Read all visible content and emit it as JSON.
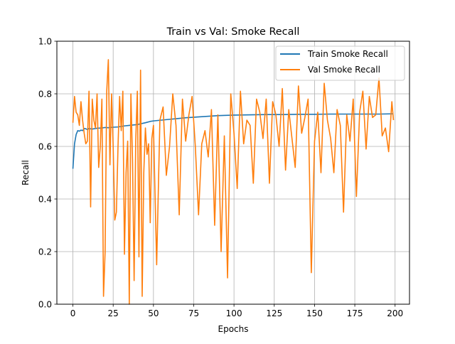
{
  "chart_data": {
    "type": "line",
    "title": "Train vs Val: Smoke Recall",
    "xlabel": "Epochs",
    "ylabel": "Recall",
    "xlim": [
      -9.95,
      208.95
    ],
    "ylim": [
      0.0,
      1.0
    ],
    "xticks": [
      0,
      25,
      50,
      75,
      100,
      125,
      150,
      175,
      200
    ],
    "yticks": [
      0.0,
      0.2,
      0.4,
      0.6,
      0.8,
      1.0
    ],
    "xtick_labels": [
      "0",
      "25",
      "50",
      "75",
      "100",
      "125",
      "150",
      "175",
      "200"
    ],
    "ytick_labels": [
      "0.0",
      "0.2",
      "0.4",
      "0.6",
      "0.8",
      "1.0"
    ],
    "grid": true,
    "legend_position": "upper right",
    "series": [
      {
        "name": "Train Smoke Recall",
        "color": "#1f77b4",
        "x": [
          0,
          1,
          2,
          3,
          4,
          5,
          6,
          7,
          8,
          9,
          10,
          12,
          15,
          18,
          20,
          22,
          25,
          28,
          30,
          32,
          35,
          38,
          40,
          42,
          45,
          48,
          50,
          55,
          60,
          65,
          70,
          75,
          80,
          85,
          90,
          95,
          100,
          110,
          120,
          130,
          140,
          150,
          160,
          170,
          180,
          190,
          199
        ],
        "values": [
          0.515,
          0.61,
          0.645,
          0.66,
          0.658,
          0.662,
          0.66,
          0.668,
          0.667,
          0.664,
          0.668,
          0.666,
          0.669,
          0.67,
          0.672,
          0.671,
          0.673,
          0.674,
          0.676,
          0.678,
          0.68,
          0.682,
          0.683,
          0.686,
          0.69,
          0.695,
          0.697,
          0.7,
          0.703,
          0.706,
          0.709,
          0.711,
          0.713,
          0.715,
          0.717,
          0.718,
          0.719,
          0.72,
          0.721,
          0.721,
          0.722,
          0.722,
          0.723,
          0.723,
          0.723,
          0.723,
          0.724
        ]
      },
      {
        "name": "Val Smoke Recall",
        "color": "#ff7f0e",
        "x": [
          0,
          1,
          2,
          3,
          4,
          5,
          6,
          7,
          8,
          9,
          10,
          11,
          12,
          13,
          14,
          15,
          16,
          17,
          18,
          19,
          20,
          21,
          22,
          23,
          24,
          25,
          26,
          27,
          28,
          29,
          30,
          31,
          32,
          33,
          34,
          35,
          36,
          37,
          38,
          39,
          40,
          41,
          42,
          43,
          44,
          45,
          46,
          47,
          48,
          49,
          50,
          52,
          54,
          56,
          58,
          60,
          62,
          64,
          66,
          68,
          70,
          72,
          74,
          76,
          78,
          80,
          82,
          84,
          86,
          88,
          90,
          92,
          94,
          96,
          98,
          100,
          102,
          104,
          106,
          108,
          110,
          112,
          114,
          116,
          118,
          120,
          122,
          124,
          126,
          128,
          130,
          132,
          134,
          136,
          138,
          140,
          142,
          144,
          146,
          148,
          150,
          152,
          154,
          156,
          158,
          160,
          162,
          164,
          166,
          168,
          170,
          172,
          174,
          176,
          178,
          180,
          182,
          184,
          186,
          188,
          190,
          192,
          194,
          196,
          198,
          199
        ],
        "values": [
          0.69,
          0.79,
          0.73,
          0.72,
          0.68,
          0.77,
          0.7,
          0.65,
          0.61,
          0.62,
          0.81,
          0.37,
          0.78,
          0.7,
          0.67,
          0.8,
          0.52,
          0.6,
          0.78,
          0.03,
          0.2,
          0.81,
          0.93,
          0.53,
          0.8,
          0.6,
          0.32,
          0.35,
          0.6,
          0.79,
          0.66,
          0.81,
          0.19,
          0.5,
          0.62,
          0.0,
          0.8,
          0.55,
          0.09,
          0.62,
          0.81,
          0.18,
          0.89,
          0.03,
          0.5,
          0.67,
          0.57,
          0.61,
          0.31,
          0.63,
          0.68,
          0.15,
          0.7,
          0.75,
          0.49,
          0.6,
          0.8,
          0.68,
          0.34,
          0.78,
          0.62,
          0.72,
          0.79,
          0.6,
          0.34,
          0.61,
          0.66,
          0.56,
          0.74,
          0.3,
          0.72,
          0.2,
          0.64,
          0.1,
          0.8,
          0.65,
          0.44,
          0.81,
          0.61,
          0.7,
          0.68,
          0.46,
          0.78,
          0.73,
          0.63,
          0.78,
          0.46,
          0.77,
          0.72,
          0.6,
          0.82,
          0.51,
          0.74,
          0.63,
          0.52,
          0.83,
          0.65,
          0.71,
          0.78,
          0.12,
          0.62,
          0.73,
          0.5,
          0.84,
          0.7,
          0.63,
          0.5,
          0.74,
          0.68,
          0.35,
          0.72,
          0.62,
          0.78,
          0.41,
          0.73,
          0.81,
          0.59,
          0.79,
          0.71,
          0.72,
          0.86,
          0.64,
          0.67,
          0.58,
          0.77,
          0.7
        ]
      }
    ]
  }
}
